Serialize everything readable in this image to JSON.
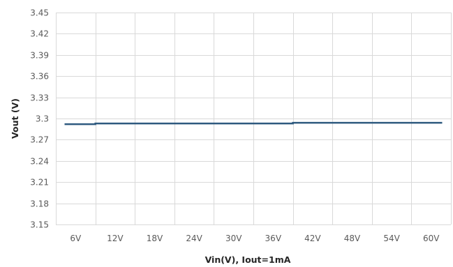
{
  "chart_data": {
    "type": "line",
    "xlabel": "Vin(V), Iout=1mA",
    "ylabel": "Vout (V)",
    "categories": [
      "6V",
      "12V",
      "18V",
      "24V",
      "30V",
      "36V",
      "42V",
      "48V",
      "54V",
      "60V"
    ],
    "y_ticks": [
      "3.15",
      "3.18",
      "3.21",
      "3.24",
      "3.27",
      "3.3",
      "3.33",
      "3.36",
      "3.39",
      "3.42",
      "3.45"
    ],
    "ylim": [
      3.15,
      3.45
    ],
    "grid": true,
    "legend": "none",
    "series": [
      {
        "color": "#2e5a7f",
        "values": [
          3.292,
          3.293,
          3.293,
          3.293,
          3.293,
          3.293,
          3.294,
          3.294,
          3.294,
          3.294
        ]
      }
    ]
  }
}
